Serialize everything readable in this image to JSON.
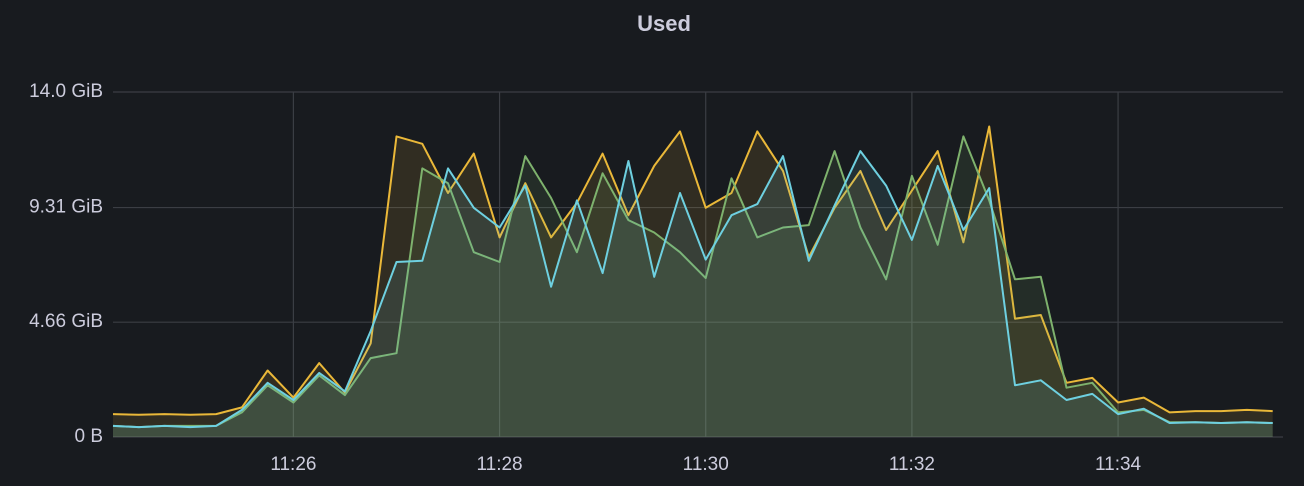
{
  "chart_data": {
    "type": "area",
    "title": "Used",
    "x": [
      684.25,
      684.5,
      684.75,
      685,
      685.25,
      685.5,
      685.75,
      686,
      686.25,
      686.5,
      686.75,
      687,
      687.25,
      687.5,
      687.75,
      688,
      688.25,
      688.5,
      688.75,
      689,
      689.25,
      689.5,
      689.75,
      690,
      690.25,
      690.5,
      690.75,
      691,
      691.25,
      691.5,
      691.75,
      692,
      692.25,
      692.5,
      692.75,
      693,
      693.25,
      693.5,
      693.75,
      694,
      694.25,
      694.5,
      694.75,
      695,
      695.25,
      695.5
    ],
    "series": [
      {
        "color": "#eab839",
        "values": [
          0.93,
          0.9,
          0.93,
          0.9,
          0.93,
          1.2,
          2.7,
          1.6,
          3.0,
          1.8,
          3.8,
          12.2,
          11.9,
          9.9,
          11.5,
          8.1,
          10.3,
          8.1,
          9.5,
          11.5,
          9.0,
          11.0,
          12.4,
          9.3,
          9.9,
          12.4,
          10.8,
          7.3,
          9.3,
          10.8,
          8.4,
          10.0,
          11.6,
          7.9,
          12.6,
          4.8,
          4.95,
          2.2,
          2.4,
          1.4,
          1.6,
          1.0,
          1.05,
          1.05,
          1.1,
          1.05
        ]
      },
      {
        "color": "#7eb26d",
        "values": [
          0.45,
          0.4,
          0.45,
          0.45,
          0.45,
          1.0,
          2.1,
          1.4,
          2.5,
          1.7,
          3.2,
          3.4,
          10.9,
          10.3,
          7.5,
          7.1,
          11.4,
          9.7,
          7.5,
          10.7,
          8.8,
          8.3,
          7.5,
          6.45,
          10.5,
          8.1,
          8.5,
          8.6,
          11.6,
          8.5,
          6.4,
          10.6,
          7.8,
          12.2,
          9.6,
          6.4,
          6.5,
          2.0,
          2.2,
          1.0,
          1.1,
          0.6,
          0.6,
          0.57,
          0.6,
          0.57
        ]
      },
      {
        "color": "#6ed0e0",
        "values": [
          0.45,
          0.4,
          0.45,
          0.4,
          0.45,
          1.1,
          2.2,
          1.5,
          2.6,
          1.85,
          4.3,
          7.1,
          7.15,
          10.9,
          9.3,
          8.5,
          10.2,
          6.1,
          9.6,
          6.65,
          11.2,
          6.5,
          9.9,
          7.2,
          9.0,
          9.45,
          11.4,
          7.15,
          9.4,
          11.6,
          10.2,
          8.0,
          11.0,
          8.4,
          10.1,
          2.1,
          2.3,
          1.5,
          1.75,
          0.93,
          1.15,
          0.57,
          0.6,
          0.57,
          0.6,
          0.57
        ]
      }
    ],
    "xlim": [
      684.25,
      695.6
    ],
    "xticks": [
      {
        "value": 686,
        "label": "11:26"
      },
      {
        "value": 688,
        "label": "11:28"
      },
      {
        "value": 690,
        "label": "11:30"
      },
      {
        "value": 692,
        "label": "11:32"
      },
      {
        "value": 694,
        "label": "11:34"
      }
    ],
    "ylim": [
      0,
      14
    ],
    "yticks": [
      {
        "value": 0,
        "label": "0 B"
      },
      {
        "value": 4.66,
        "label": "4.66 GiB"
      },
      {
        "value": 9.31,
        "label": "9.31 GiB"
      },
      {
        "value": 14,
        "label": "14.0 GiB"
      }
    ],
    "grid": true
  }
}
